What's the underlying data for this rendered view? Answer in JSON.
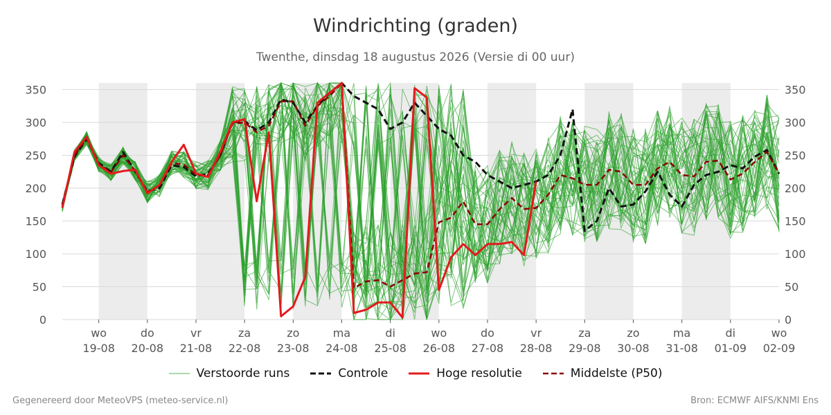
{
  "title": "Windrichting (graden)",
  "subtitle": "Twenthe, dinsdag 18 augustus 2026 (Versie di 00 uur)",
  "footer_left": "Gegenereerd door MeteoVPS (meteo-service.nl)",
  "footer_right": "Bron: ECMWF AIFS/KNMI Ens",
  "legend": [
    {
      "label": "Verstoorde runs",
      "color": "#2ca02c",
      "style": "thin"
    },
    {
      "label": "Controle",
      "color": "#111111",
      "style": "dashed"
    },
    {
      "label": "Hoge resolutie",
      "color": "#e31a1c",
      "style": "solid"
    },
    {
      "label": "Middelste (P50)",
      "color": "#8b0000",
      "style": "dashed"
    }
  ],
  "chart_data": {
    "type": "line",
    "xlabel": "",
    "ylabel": "",
    "ylim": [
      0,
      360
    ],
    "yticks": [
      0,
      50,
      100,
      150,
      200,
      250,
      300,
      350
    ],
    "x_range_days": [
      "2026-08-18 06:00",
      "2026-09-02 00:00"
    ],
    "x_ticks": [
      {
        "day": "wo",
        "date": "19-08"
      },
      {
        "day": "do",
        "date": "20-08"
      },
      {
        "day": "vr",
        "date": "21-08"
      },
      {
        "day": "za",
        "date": "22-08"
      },
      {
        "day": "zo",
        "date": "23-08"
      },
      {
        "day": "ma",
        "date": "24-08"
      },
      {
        "day": "di",
        "date": "25-08"
      },
      {
        "day": "wo",
        "date": "26-08"
      },
      {
        "day": "do",
        "date": "27-08"
      },
      {
        "day": "vr",
        "date": "28-08"
      },
      {
        "day": "za",
        "date": "29-08"
      },
      {
        "day": "zo",
        "date": "30-08"
      },
      {
        "day": "ma",
        "date": "31-08"
      },
      {
        "day": "di",
        "date": "01-09"
      },
      {
        "day": "wo",
        "date": "02-09"
      }
    ],
    "shaded_days": [
      "19-08",
      "21-08",
      "23-08",
      "25-08",
      "27-08",
      "29-08",
      "31-08"
    ],
    "grid": true,
    "legend_position": "bottom",
    "series": [
      {
        "name": "Hoge resolutie",
        "color": "#e31a1c",
        "x": [
          "2026-08-18 06:00",
          "2026-08-18 12:00",
          "2026-08-18 18:00",
          "2026-08-19 00:00",
          "2026-08-19 06:00",
          "2026-08-19 12:00",
          "2026-08-19 18:00",
          "2026-08-20 00:00",
          "2026-08-20 06:00",
          "2026-08-20 12:00",
          "2026-08-20 18:00",
          "2026-08-21 00:00",
          "2026-08-21 06:00",
          "2026-08-21 12:00",
          "2026-08-21 18:00",
          "2026-08-22 00:00",
          "2026-08-22 06:00",
          "2026-08-22 12:00",
          "2026-08-22 18:00",
          "2026-08-23 00:00",
          "2026-08-23 06:00",
          "2026-08-23 12:00",
          "2026-08-23 18:00",
          "2026-08-24 00:00",
          "2026-08-24 06:00",
          "2026-08-24 12:00",
          "2026-08-24 18:00",
          "2026-08-25 00:00",
          "2026-08-25 06:00",
          "2026-08-25 12:00",
          "2026-08-25 18:00",
          "2026-08-26 00:00",
          "2026-08-26 06:00",
          "2026-08-26 12:00",
          "2026-08-26 18:00",
          "2026-08-27 00:00",
          "2026-08-27 06:00",
          "2026-08-27 12:00",
          "2026-08-27 18:00",
          "2026-08-28 00:00"
        ],
        "values": [
          170,
          255,
          278,
          235,
          222,
          226,
          228,
          192,
          205,
          240,
          266,
          222,
          217,
          255,
          300,
          305,
          180,
          285,
          5,
          20,
          65,
          330,
          345,
          360,
          10,
          15,
          26,
          26,
          3,
          352,
          338,
          45,
          95,
          115,
          98,
          115,
          115,
          118,
          98,
          210
        ]
      },
      {
        "name": "Controle",
        "color": "#111111",
        "x": [
          "2026-08-18 06:00",
          "2026-08-18 12:00",
          "2026-08-18 18:00",
          "2026-08-19 00:00",
          "2026-08-19 06:00",
          "2026-08-19 12:00",
          "2026-08-19 18:00",
          "2026-08-20 00:00",
          "2026-08-20 06:00",
          "2026-08-20 12:00",
          "2026-08-20 18:00",
          "2026-08-21 00:00",
          "2026-08-21 06:00",
          "2026-08-21 12:00",
          "2026-08-21 18:00",
          "2026-08-22 00:00",
          "2026-08-22 06:00",
          "2026-08-22 12:00",
          "2026-08-22 18:00",
          "2026-08-23 00:00",
          "2026-08-23 06:00",
          "2026-08-23 12:00",
          "2026-08-23 18:00",
          "2026-08-24 00:00",
          "2026-08-24 06:00",
          "2026-08-24 12:00",
          "2026-08-24 18:00",
          "2026-08-25 00:00",
          "2026-08-25 06:00",
          "2026-08-25 12:00",
          "2026-08-25 18:00",
          "2026-08-26 00:00",
          "2026-08-26 06:00",
          "2026-08-26 12:00",
          "2026-08-26 18:00",
          "2026-08-27 00:00",
          "2026-08-27 06:00",
          "2026-08-27 12:00",
          "2026-08-27 18:00",
          "2026-08-28 00:00",
          "2026-08-28 06:00",
          "2026-08-28 12:00",
          "2026-08-28 18:00",
          "2026-08-29 00:00",
          "2026-08-29 06:00",
          "2026-08-29 12:00",
          "2026-08-29 18:00",
          "2026-08-30 00:00",
          "2026-08-30 06:00",
          "2026-08-30 12:00",
          "2026-08-30 18:00",
          "2026-08-31 00:00",
          "2026-08-31 06:00",
          "2026-08-31 12:00",
          "2026-08-31 18:00",
          "2026-09-01 00:00",
          "2026-09-01 06:00",
          "2026-09-01 12:00",
          "2026-09-01 18:00",
          "2026-09-02 00:00"
        ],
        "values": [
          175,
          248,
          275,
          238,
          225,
          255,
          225,
          195,
          200,
          235,
          232,
          218,
          222,
          250,
          300,
          302,
          288,
          300,
          335,
          330,
          300,
          325,
          345,
          360,
          340,
          330,
          320,
          290,
          300,
          330,
          310,
          290,
          280,
          250,
          240,
          220,
          210,
          200,
          205,
          210,
          220,
          250,
          320,
          135,
          150,
          200,
          172,
          175,
          195,
          225,
          190,
          172,
          205,
          220,
          225,
          235,
          230,
          248,
          258,
          222
        ]
      },
      {
        "name": "Middelste (P50)",
        "color": "#8b0000",
        "x": [
          "2026-08-18 06:00",
          "2026-08-18 12:00",
          "2026-08-18 18:00",
          "2026-08-19 00:00",
          "2026-08-19 06:00",
          "2026-08-19 12:00",
          "2026-08-19 18:00",
          "2026-08-20 00:00",
          "2026-08-20 06:00",
          "2026-08-20 12:00",
          "2026-08-20 18:00",
          "2026-08-21 00:00",
          "2026-08-21 06:00",
          "2026-08-21 12:00",
          "2026-08-21 18:00",
          "2026-08-22 00:00",
          "2026-08-22 06:00",
          "2026-08-22 12:00",
          "2026-08-22 18:00",
          "2026-08-23 00:00",
          "2026-08-23 06:00",
          "2026-08-23 12:00",
          "2026-08-23 18:00",
          "2026-08-24 00:00",
          "2026-08-24 06:00",
          "2026-08-24 12:00",
          "2026-08-24 18:00",
          "2026-08-25 00:00",
          "2026-08-25 06:00",
          "2026-08-25 12:00",
          "2026-08-25 18:00",
          "2026-08-26 00:00",
          "2026-08-26 06:00",
          "2026-08-26 12:00",
          "2026-08-26 18:00",
          "2026-08-27 00:00",
          "2026-08-27 06:00",
          "2026-08-27 12:00",
          "2026-08-27 18:00",
          "2026-08-28 00:00",
          "2026-08-28 06:00",
          "2026-08-28 12:00",
          "2026-08-28 18:00",
          "2026-08-29 00:00",
          "2026-08-29 06:00",
          "2026-08-29 12:00",
          "2026-08-29 18:00",
          "2026-08-30 00:00",
          "2026-08-30 06:00",
          "2026-08-30 12:00",
          "2026-08-30 18:00",
          "2026-08-31 00:00",
          "2026-08-31 06:00",
          "2026-08-31 12:00",
          "2026-08-31 18:00",
          "2026-09-01 00:00",
          "2026-09-01 06:00",
          "2026-09-01 12:00",
          "2026-09-01 18:00",
          "2026-09-02 00:00"
        ],
        "values": [
          172,
          250,
          276,
          236,
          224,
          250,
          226,
          194,
          204,
          238,
          236,
          220,
          220,
          250,
          298,
          300,
          285,
          295,
          332,
          332,
          295,
          325,
          340,
          360,
          48,
          58,
          60,
          50,
          60,
          70,
          72,
          148,
          155,
          180,
          145,
          145,
          168,
          185,
          168,
          170,
          190,
          220,
          215,
          205,
          205,
          228,
          225,
          205,
          205,
          230,
          240,
          220,
          218,
          240,
          242,
          213,
          222,
          240,
          255,
          222
        ]
      }
    ],
    "ensemble_members": 50
  }
}
